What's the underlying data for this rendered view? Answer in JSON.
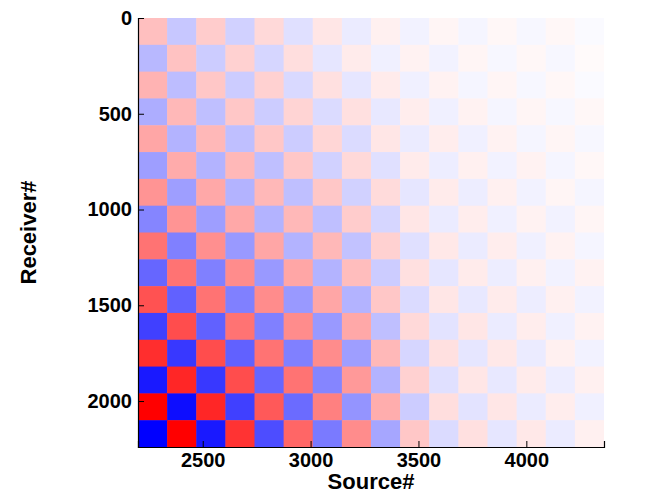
{
  "chart_data": {
    "type": "heatmap",
    "x_label": "Source#",
    "y_label": "Receiver#",
    "xlim": [
      2200,
      4360
    ],
    "ylim": [
      0,
      2240
    ],
    "xticks": [
      2500,
      3000,
      3500,
      4000
    ],
    "yticks": [
      0,
      500,
      1000,
      1500,
      2000
    ],
    "zlim": [
      -1,
      1
    ],
    "cells": [
      [
        0.25,
        -0.22,
        0.2,
        -0.18,
        0.15,
        -0.12,
        0.1,
        -0.08,
        0.06,
        -0.05,
        0.04,
        -0.04,
        0.03,
        -0.03,
        0.03,
        -0.02
      ],
      [
        -0.28,
        0.24,
        -0.2,
        0.18,
        -0.16,
        0.13,
        -0.1,
        0.08,
        -0.06,
        0.05,
        -0.05,
        0.04,
        -0.03,
        0.03,
        -0.03,
        0.02
      ],
      [
        0.3,
        -0.26,
        0.22,
        -0.2,
        0.18,
        -0.15,
        0.12,
        -0.1,
        0.08,
        -0.06,
        0.05,
        -0.04,
        0.04,
        -0.03,
        0.03,
        -0.02
      ],
      [
        -0.32,
        0.28,
        -0.25,
        0.22,
        -0.2,
        0.17,
        -0.14,
        0.12,
        -0.09,
        0.07,
        -0.06,
        0.05,
        -0.04,
        0.04,
        -0.03,
        0.03
      ],
      [
        0.35,
        -0.3,
        0.28,
        -0.25,
        0.22,
        -0.2,
        0.16,
        -0.14,
        0.1,
        -0.08,
        0.07,
        -0.06,
        0.05,
        -0.04,
        0.04,
        -0.03
      ],
      [
        -0.38,
        0.33,
        -0.3,
        0.28,
        -0.25,
        0.22,
        -0.18,
        0.15,
        -0.12,
        0.08,
        -0.07,
        0.06,
        -0.05,
        0.05,
        -0.04,
        0.03
      ],
      [
        0.42,
        -0.38,
        0.34,
        -0.3,
        0.28,
        -0.25,
        0.22,
        -0.18,
        0.14,
        -0.1,
        0.08,
        -0.07,
        0.06,
        -0.05,
        0.04,
        -0.04
      ],
      [
        -0.48,
        0.42,
        -0.38,
        0.34,
        -0.3,
        0.28,
        -0.25,
        0.2,
        -0.16,
        0.1,
        -0.08,
        0.07,
        -0.06,
        0.05,
        -0.05,
        0.04
      ],
      [
        0.55,
        -0.5,
        0.44,
        -0.4,
        0.35,
        -0.3,
        0.28,
        -0.24,
        0.18,
        -0.12,
        0.09,
        -0.08,
        0.07,
        -0.06,
        0.05,
        -0.04
      ],
      [
        -0.6,
        0.55,
        -0.5,
        0.45,
        -0.4,
        0.35,
        -0.3,
        0.26,
        -0.2,
        0.12,
        -0.1,
        0.08,
        -0.07,
        0.06,
        -0.05,
        0.05
      ],
      [
        0.68,
        -0.62,
        0.55,
        -0.5,
        0.45,
        -0.4,
        0.35,
        -0.3,
        0.22,
        -0.14,
        0.1,
        -0.09,
        0.08,
        -0.07,
        0.06,
        -0.05
      ],
      [
        -0.75,
        0.7,
        -0.62,
        0.55,
        -0.5,
        0.45,
        -0.4,
        0.34,
        -0.25,
        0.15,
        -0.11,
        0.1,
        -0.08,
        0.07,
        -0.06,
        0.05
      ],
      [
        0.82,
        -0.78,
        0.7,
        -0.62,
        0.55,
        -0.5,
        0.45,
        -0.38,
        0.28,
        -0.16,
        0.12,
        -0.1,
        0.09,
        -0.08,
        0.06,
        -0.05
      ],
      [
        -0.9,
        0.85,
        -0.78,
        0.7,
        -0.6,
        0.55,
        -0.48,
        0.4,
        -0.3,
        0.18,
        -0.12,
        0.1,
        -0.09,
        0.08,
        -0.07,
        0.06
      ],
      [
        1,
        -0.95,
        0.85,
        -0.75,
        0.65,
        -0.58,
        0.5,
        -0.42,
        0.32,
        -0.2,
        0.13,
        -0.11,
        0.1,
        -0.08,
        0.07,
        -0.06
      ],
      [
        -1,
        1,
        -0.9,
        0.8,
        -0.7,
        0.6,
        -0.52,
        0.45,
        -0.35,
        0.22,
        -0.14,
        0.12,
        -0.1,
        0.09,
        -0.08,
        0.06
      ]
    ]
  }
}
